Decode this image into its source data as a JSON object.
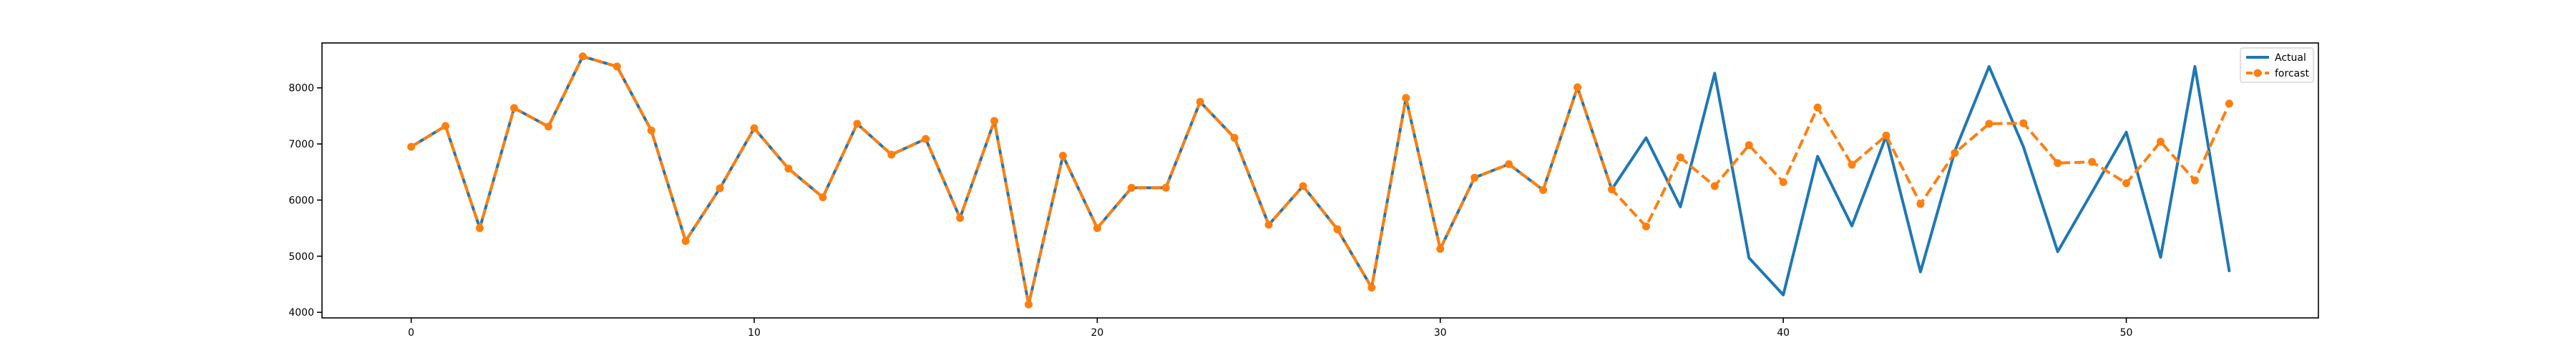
{
  "chart_data": {
    "type": "line",
    "title": "",
    "xlabel": "",
    "ylabel": "",
    "xlim": [
      -2.6,
      55.6
    ],
    "ylim": [
      3900,
      8800
    ],
    "xticks": [
      0,
      10,
      20,
      30,
      40,
      50
    ],
    "yticks": [
      4000,
      5000,
      6000,
      7000,
      8000
    ],
    "grid": false,
    "legend_position": "top-right",
    "series": [
      {
        "name": "Actual",
        "color": "#1f77b4",
        "style": "solid",
        "x": [
          0,
          1,
          2,
          3,
          4,
          5,
          6,
          7,
          8,
          9,
          10,
          11,
          12,
          13,
          14,
          15,
          16,
          17,
          18,
          19,
          20,
          21,
          22,
          23,
          24,
          25,
          26,
          27,
          28,
          29,
          30,
          31,
          32,
          33,
          34,
          35,
          36,
          37,
          38,
          39,
          40,
          41,
          42,
          43,
          44,
          45,
          46,
          47,
          48,
          49,
          50,
          51,
          52,
          53
        ],
        "values": [
          6950,
          7320,
          5500,
          7640,
          7310,
          8560,
          8380,
          7240,
          5270,
          6210,
          7280,
          6560,
          6050,
          7360,
          6810,
          7090,
          5680,
          7410,
          4140,
          6790,
          5500,
          6220,
          6220,
          7750,
          7110,
          5560,
          6250,
          5480,
          4440,
          7820,
          5130,
          6400,
          6640,
          6180,
          8010,
          6190,
          7110,
          5880,
          8260,
          4970,
          4310,
          6780,
          5540,
          7140,
          4720,
          6870,
          8380,
          6950,
          5080,
          6140,
          7210,
          4980,
          8380,
          4740
        ]
      },
      {
        "name": "forcast",
        "color": "#ff7f0e",
        "style": "dashed",
        "marker": "circle",
        "x": [
          0,
          1,
          2,
          3,
          4,
          5,
          6,
          7,
          8,
          9,
          10,
          11,
          12,
          13,
          14,
          15,
          16,
          17,
          18,
          19,
          20,
          21,
          22,
          23,
          24,
          25,
          26,
          27,
          28,
          29,
          30,
          31,
          32,
          33,
          34,
          35,
          36,
          37,
          38,
          39,
          40,
          41,
          42,
          43,
          44,
          45,
          46,
          47,
          48,
          49,
          50,
          51,
          52,
          53
        ],
        "values": [
          6950,
          7320,
          5500,
          7640,
          7310,
          8560,
          8380,
          7240,
          5270,
          6210,
          7280,
          6560,
          6050,
          7360,
          6810,
          7090,
          5680,
          7410,
          4140,
          6790,
          5500,
          6220,
          6220,
          7750,
          7110,
          5560,
          6250,
          5480,
          4440,
          7820,
          5130,
          6400,
          6640,
          6180,
          8010,
          6190,
          5530,
          6760,
          6250,
          6980,
          6320,
          7650,
          6630,
          7150,
          5930,
          6840,
          7360,
          7370,
          6660,
          6680,
          6300,
          7040,
          6350,
          7720
        ]
      }
    ]
  }
}
